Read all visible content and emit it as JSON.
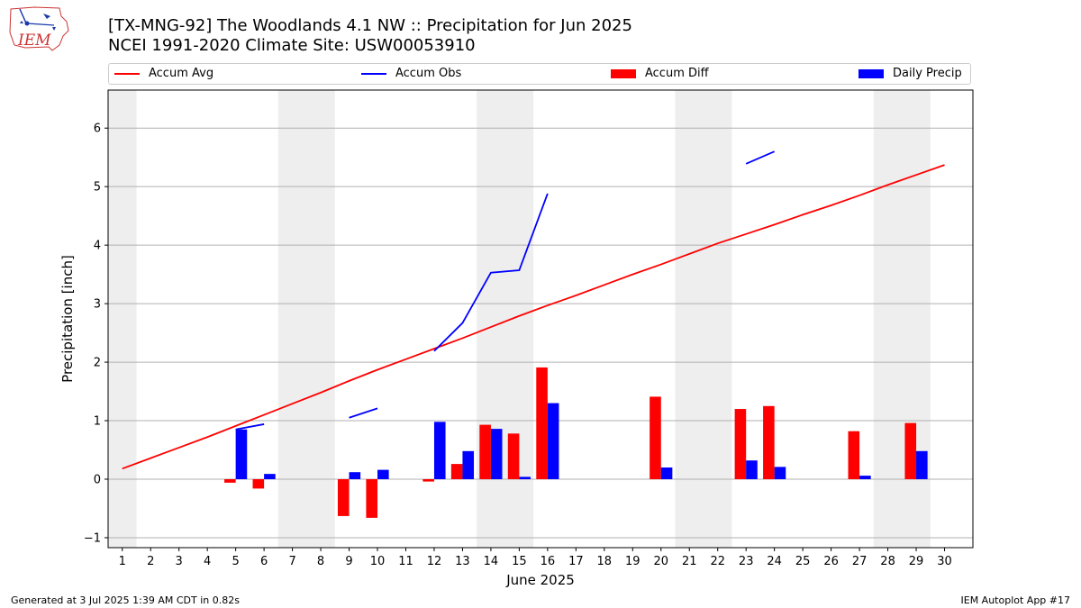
{
  "header": {
    "title_line1": "[TX-MNG-92] The Woodlands 4.1 NW :: Precipitation for Jun 2025",
    "title_line2": "NCEI 1991-2020 Climate Site: USW00053910",
    "logo_text": "IEM"
  },
  "footer": {
    "generated": "Generated at 3 Jul 2025 1:39 AM CDT in 0.82s",
    "app": "IEM Autoplot App #17"
  },
  "colors": {
    "accum_avg": "#ff0000",
    "accum_obs": "#0000ff",
    "accum_diff": "#ff0000",
    "daily_precip": "#0000ff",
    "weekend_shade": "#eeeeee",
    "grid": "#b0b0b0"
  },
  "chart_data": {
    "type": "bar",
    "xlabel": "June 2025",
    "ylabel": "Precipitation [inch]",
    "xlim": [
      0.5,
      31
    ],
    "ylim": [
      -1.17,
      6.65
    ],
    "yticks": [
      -1,
      0,
      1,
      2,
      3,
      4,
      5,
      6
    ],
    "days": [
      1,
      2,
      3,
      4,
      5,
      6,
      7,
      8,
      9,
      10,
      11,
      12,
      13,
      14,
      15,
      16,
      17,
      18,
      19,
      20,
      21,
      22,
      23,
      24,
      25,
      26,
      27,
      28,
      29,
      30
    ],
    "legend": [
      {
        "name": "Accum Avg",
        "kind": "line",
        "color": "#ff0000"
      },
      {
        "name": "Accum Obs",
        "kind": "line",
        "color": "#0000ff"
      },
      {
        "name": "Accum Diff",
        "kind": "bar",
        "color": "#ff0000"
      },
      {
        "name": "Daily Precip",
        "kind": "bar",
        "color": "#0000ff"
      }
    ],
    "weekend_spans": [
      [
        0.5,
        1.5
      ],
      [
        6.5,
        8.5
      ],
      [
        13.5,
        15.5
      ],
      [
        20.5,
        22.5
      ],
      [
        27.5,
        29.5
      ]
    ],
    "accum_avg": [
      0.18,
      0.36,
      0.54,
      0.72,
      0.91,
      1.1,
      1.29,
      1.48,
      1.68,
      1.87,
      2.05,
      2.23,
      2.41,
      2.6,
      2.79,
      2.97,
      3.14,
      3.32,
      3.5,
      3.67,
      3.85,
      4.03,
      4.19,
      4.35,
      4.52,
      4.68,
      4.85,
      5.03,
      5.2,
      5.37
    ],
    "accum_obs_segments": [
      {
        "x": [
          5,
          6
        ],
        "y": [
          0.85,
          0.94
        ]
      },
      {
        "x": [
          9,
          10
        ],
        "y": [
          1.05,
          1.21
        ]
      },
      {
        "x": [
          12,
          13,
          14,
          15,
          16
        ],
        "y": [
          2.19,
          2.67,
          3.53,
          3.57,
          4.88
        ]
      },
      {
        "x": [
          23,
          24
        ],
        "y": [
          5.39,
          5.6
        ]
      }
    ],
    "accum_diff": {
      "x": [
        5,
        6,
        9,
        10,
        12,
        13,
        14,
        15,
        16,
        20,
        23,
        24,
        27,
        29
      ],
      "values": [
        -0.06,
        -0.16,
        -0.63,
        -0.66,
        -0.04,
        0.26,
        0.93,
        0.78,
        1.91,
        1.41,
        1.2,
        1.25,
        0.82,
        0.96
      ]
    },
    "daily_precip": {
      "x": [
        5,
        6,
        9,
        10,
        12,
        13,
        14,
        15,
        16,
        20,
        23,
        24,
        27,
        29
      ],
      "values": [
        0.85,
        0.09,
        0.12,
        0.16,
        0.98,
        0.48,
        0.86,
        0.04,
        1.3,
        0.2,
        0.32,
        0.21,
        0.06,
        0.48
      ]
    }
  }
}
